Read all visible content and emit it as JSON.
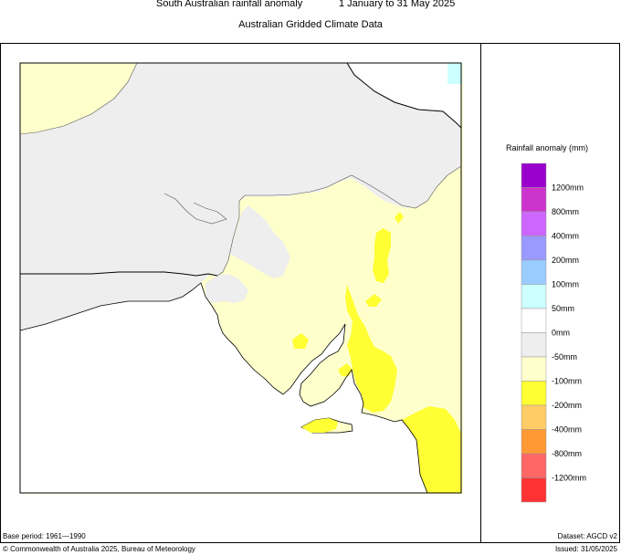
{
  "header": {
    "title": "South Australian rainfall anomaly",
    "period": "1 January to 31 May 2025",
    "subtitle": "Australian Gridded Climate Data"
  },
  "legend": {
    "title": "Rainfall anomaly (mm)",
    "swatches": [
      {
        "label": "1200mm",
        "color": "#9900cc"
      },
      {
        "label": "800mm",
        "color": "#cc33cc"
      },
      {
        "label": "400mm",
        "color": "#cc66ff"
      },
      {
        "label": "200mm",
        "color": "#9999ff"
      },
      {
        "label": "100mm",
        "color": "#99ccff"
      },
      {
        "label": "50mm",
        "color": "#ccffff"
      },
      {
        "label": "0mm",
        "color": "#ffffff"
      },
      {
        "label": "-50mm",
        "color": "#eeeeee"
      },
      {
        "label": "-100mm",
        "color": "#ffffcc"
      },
      {
        "label": "-200mm",
        "color": "#ffff33"
      },
      {
        "label": "-400mm",
        "color": "#ffcc66"
      },
      {
        "label": "-800mm",
        "color": "#ff9933"
      },
      {
        "label": "-1200mm",
        "color": "#ff6666"
      },
      {
        "label": "",
        "color": "#ff3333"
      }
    ]
  },
  "map": {
    "colors": {
      "below_100": "#ffffcc",
      "below_50": "#eeeeee",
      "below_200": "#ffff33",
      "outside": "#ffffff",
      "above_50": "#ccffff"
    }
  },
  "footer": {
    "base_period": "Base period: 1961—1990",
    "dataset": "Dataset: AGCD v2",
    "copyright": "© Commonwealth of Australia 2025, Bureau of Meteorology",
    "issued": "Issued: 31/05/2025"
  }
}
